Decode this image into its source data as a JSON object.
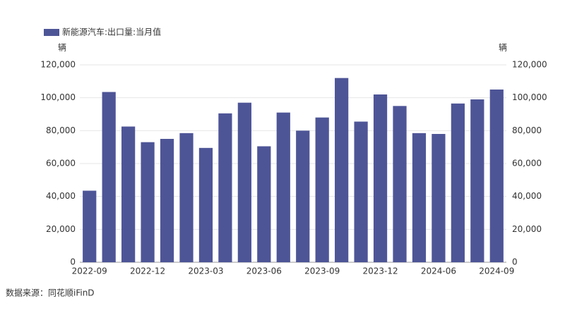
{
  "chart_data": {
    "type": "bar",
    "legend_label": "新能源汽车:出口量:当月值",
    "y_label": "辆",
    "y2_label": "辆",
    "source": "数据来源：同花顺iFinD",
    "categories": [
      "2022-09",
      null,
      null,
      "2022-12",
      null,
      null,
      "2023-03",
      null,
      null,
      "2023-06",
      null,
      null,
      "2023-09",
      null,
      null,
      "2023-12",
      null,
      null,
      "2024-06",
      null,
      null,
      "2024-09"
    ],
    "series": [
      {
        "name": "新能源汽车:出口量:当月值",
        "color": "#4e5597",
        "values": [
          43500,
          103500,
          82500,
          73000,
          75000,
          78500,
          69500,
          90500,
          97000,
          70500,
          91000,
          80000,
          88000,
          112000,
          85500,
          102000,
          95000,
          78500,
          78000,
          96500,
          99000,
          105000
        ]
      }
    ],
    "ylim": [
      0,
      120000
    ],
    "yticks": [
      0,
      {
        "value": 20000,
        "label": "20,000"
      },
      {
        "value": 40000,
        "label": "40,000"
      },
      {
        "value": 60000,
        "label": "60,000"
      },
      {
        "value": 80000,
        "label": "80,000"
      },
      {
        "value": 100000,
        "label": "100,000"
      },
      {
        "value": 120000,
        "label": "120,000"
      }
    ],
    "y2lim": [
      0,
      120000
    ],
    "y2ticks": [
      0,
      {
        "value": 20000,
        "label": "20,000"
      },
      {
        "value": 40000,
        "label": "40,000"
      },
      {
        "value": 60000,
        "label": "60,000"
      },
      {
        "value": 80000,
        "label": "80,000"
      },
      {
        "value": 100000,
        "label": "100,000"
      },
      {
        "value": 120000,
        "label": "120,000"
      }
    ],
    "grid": true
  }
}
